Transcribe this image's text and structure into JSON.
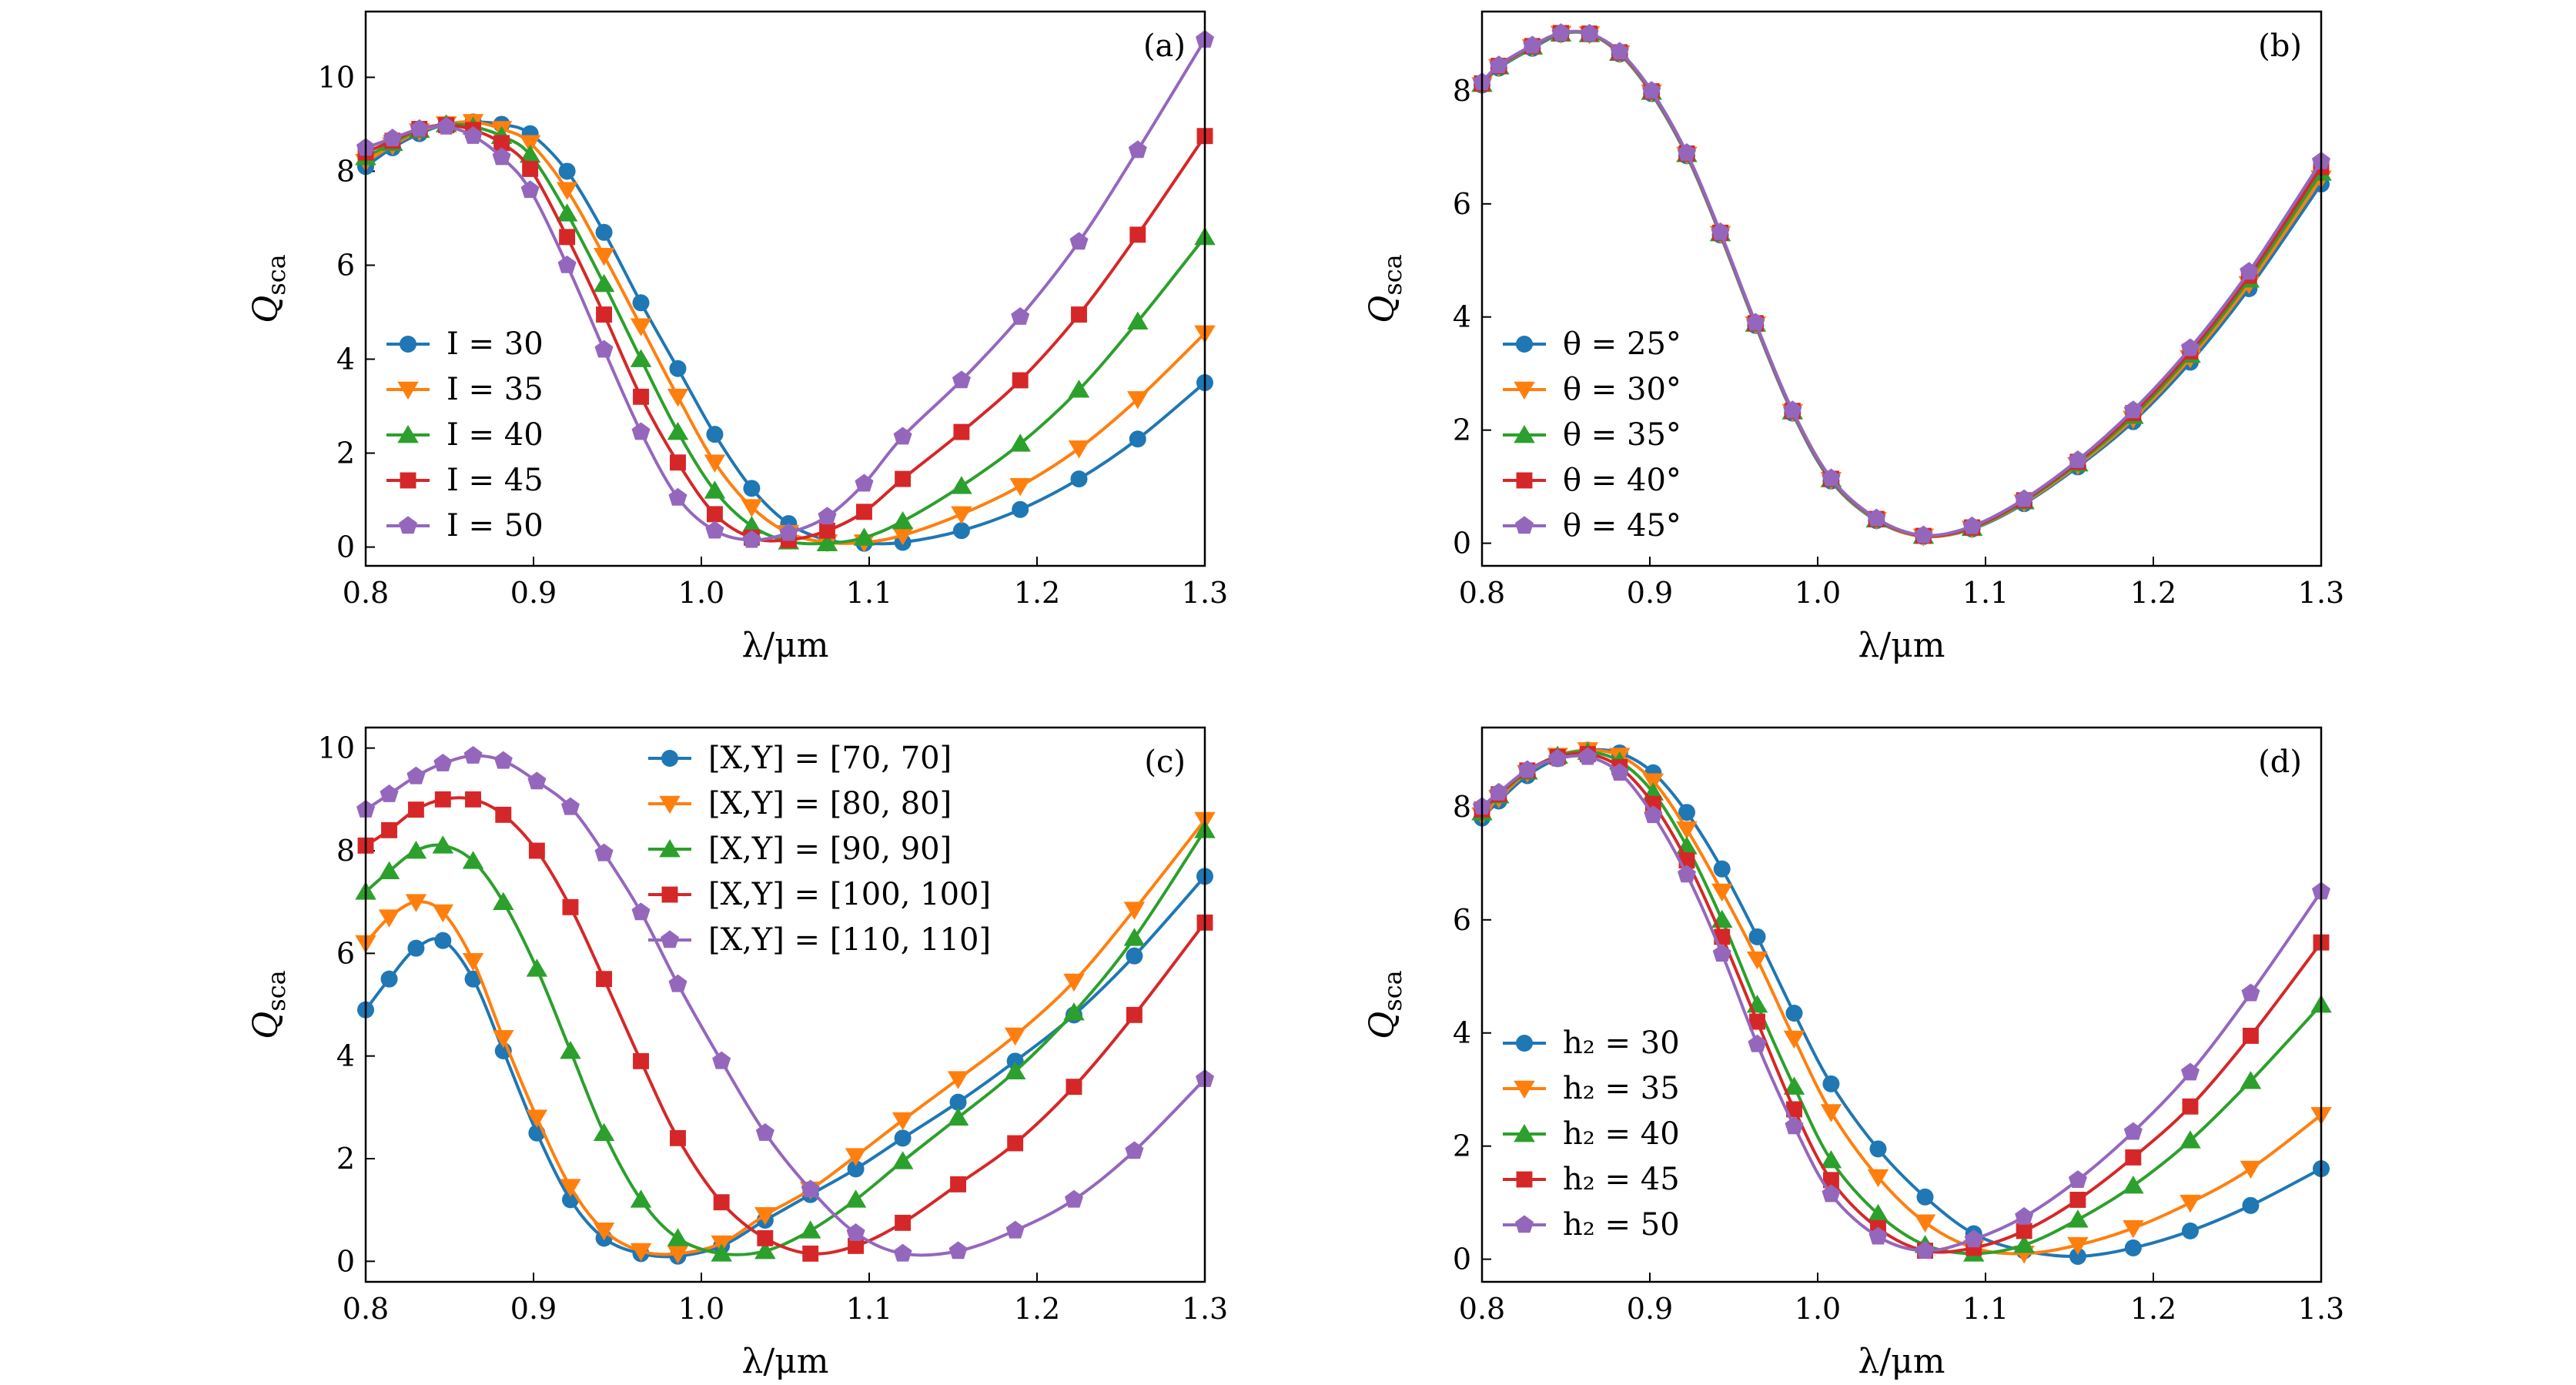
{
  "figure": {
    "panels": [
      {
        "id": "a",
        "label": "(a)",
        "xlabel": "λ/μm",
        "ylabel_main": "Q",
        "ylabel_sub": "sca",
        "legend_position": "lower-left"
      },
      {
        "id": "b",
        "label": "(b)",
        "xlabel": "λ/μm",
        "ylabel_main": "Q",
        "ylabel_sub": "sca",
        "legend_position": "lower-left"
      },
      {
        "id": "c",
        "label": "(c)",
        "xlabel": "λ/μm",
        "ylabel_main": "Q",
        "ylabel_sub": "sca",
        "legend_position": "top-center"
      },
      {
        "id": "d",
        "label": "(d)",
        "xlabel": "λ/μm",
        "ylabel_main": "Q",
        "ylabel_sub": "sca",
        "legend_position": "lower-left"
      }
    ]
  },
  "colors": {
    "blue": "#1f77b4",
    "orange": "#ff7f0e",
    "green": "#2ca02c",
    "red": "#d62728",
    "purple": "#9467bd"
  },
  "chart_data": [
    {
      "panel": "a",
      "type": "line",
      "xlim": [
        0.8,
        1.3
      ],
      "ylim": [
        -0.4,
        11.4
      ],
      "xticks": [
        "0.8",
        "0.9",
        "1.0",
        "1.1",
        "1.2",
        "1.3"
      ],
      "yticks": [
        "0",
        "2",
        "4",
        "6",
        "8",
        "10"
      ],
      "x": [
        0.8,
        0.816,
        0.832,
        0.848,
        0.864,
        0.881,
        0.898,
        0.92,
        0.942,
        0.964,
        0.986,
        1.008,
        1.03,
        1.052,
        1.075,
        1.097,
        1.12,
        1.155,
        1.19,
        1.225,
        1.26,
        1.3
      ],
      "series": [
        {
          "name": "I = 30",
          "values": [
            8.1,
            8.5,
            8.8,
            9.0,
            9.05,
            9.0,
            8.8,
            8.0,
            6.7,
            5.2,
            3.8,
            2.4,
            1.25,
            0.5,
            0.15,
            0.08,
            0.1,
            0.35,
            0.8,
            1.45,
            2.3,
            3.5
          ]
        },
        {
          "name": "I = 35",
          "values": [
            8.2,
            8.55,
            8.85,
            9.0,
            9.05,
            8.9,
            8.6,
            7.6,
            6.2,
            4.7,
            3.2,
            1.8,
            0.85,
            0.3,
            0.1,
            0.1,
            0.25,
            0.7,
            1.3,
            2.1,
            3.15,
            4.55
          ]
        },
        {
          "name": "I = 40",
          "values": [
            8.3,
            8.6,
            8.88,
            9.0,
            8.95,
            8.75,
            8.35,
            7.1,
            5.6,
            4.0,
            2.45,
            1.2,
            0.45,
            0.12,
            0.08,
            0.2,
            0.55,
            1.3,
            2.2,
            3.35,
            4.8,
            6.6
          ]
        },
        {
          "name": "I = 45",
          "values": [
            8.4,
            8.65,
            8.9,
            8.98,
            8.88,
            8.6,
            8.05,
            6.6,
            4.95,
            3.2,
            1.8,
            0.7,
            0.2,
            0.15,
            0.35,
            0.75,
            1.45,
            2.45,
            3.55,
            4.95,
            6.65,
            8.75
          ]
        },
        {
          "name": "I = 50",
          "values": [
            8.5,
            8.7,
            8.9,
            8.95,
            8.75,
            8.3,
            7.6,
            6.0,
            4.2,
            2.45,
            1.05,
            0.35,
            0.15,
            0.3,
            0.65,
            1.35,
            2.35,
            3.55,
            4.9,
            6.5,
            8.45,
            10.8
          ]
        }
      ]
    },
    {
      "panel": "b",
      "type": "line",
      "xlim": [
        0.8,
        1.3
      ],
      "ylim": [
        -0.4,
        9.4
      ],
      "xticks": [
        "0.8",
        "0.9",
        "1.0",
        "1.1",
        "1.2",
        "1.3"
      ],
      "yticks": [
        "0",
        "2",
        "4",
        "6",
        "8"
      ],
      "x": [
        0.8,
        0.81,
        0.83,
        0.847,
        0.864,
        0.882,
        0.901,
        0.922,
        0.942,
        0.963,
        0.985,
        1.008,
        1.035,
        1.063,
        1.092,
        1.123,
        1.155,
        1.188,
        1.222,
        1.257,
        1.3
      ],
      "series": [
        {
          "name": "θ = 25°",
          "values": [
            8.1,
            8.4,
            8.75,
            9.0,
            9.0,
            8.65,
            7.95,
            6.85,
            5.45,
            3.85,
            2.3,
            1.1,
            0.4,
            0.12,
            0.25,
            0.7,
            1.35,
            2.15,
            3.2,
            4.5,
            6.35
          ]
        },
        {
          "name": "θ = 30°",
          "values": [
            8.1,
            8.42,
            8.77,
            9.01,
            9.0,
            8.66,
            7.97,
            6.87,
            5.47,
            3.87,
            2.32,
            1.12,
            0.41,
            0.12,
            0.26,
            0.72,
            1.38,
            2.2,
            3.27,
            4.58,
            6.45
          ]
        },
        {
          "name": "θ = 35°",
          "values": [
            8.12,
            8.43,
            8.78,
            9.01,
            9.0,
            8.67,
            7.98,
            6.88,
            5.48,
            3.88,
            2.33,
            1.13,
            0.42,
            0.13,
            0.27,
            0.74,
            1.41,
            2.25,
            3.33,
            4.66,
            6.55
          ]
        },
        {
          "name": "θ = 40°",
          "values": [
            8.13,
            8.44,
            8.79,
            9.02,
            9.01,
            8.68,
            7.99,
            6.89,
            5.49,
            3.89,
            2.34,
            1.14,
            0.43,
            0.13,
            0.28,
            0.76,
            1.44,
            2.3,
            3.39,
            4.73,
            6.65
          ]
        },
        {
          "name": "θ = 45°",
          "values": [
            8.15,
            8.45,
            8.8,
            9.02,
            9.01,
            8.69,
            8.0,
            6.9,
            5.5,
            3.9,
            2.35,
            1.15,
            0.44,
            0.14,
            0.3,
            0.78,
            1.47,
            2.35,
            3.45,
            4.8,
            6.75
          ]
        }
      ]
    },
    {
      "panel": "c",
      "type": "line",
      "xlim": [
        0.8,
        1.3
      ],
      "ylim": [
        -0.4,
        10.4
      ],
      "xticks": [
        "0.8",
        "0.9",
        "1.0",
        "1.1",
        "1.2",
        "1.3"
      ],
      "yticks": [
        "0",
        "2",
        "4",
        "6",
        "8",
        "10"
      ],
      "x": [
        0.8,
        0.814,
        0.83,
        0.846,
        0.864,
        0.882,
        0.902,
        0.922,
        0.942,
        0.964,
        0.986,
        1.012,
        1.038,
        1.065,
        1.092,
        1.12,
        1.153,
        1.187,
        1.222,
        1.258,
        1.3
      ],
      "series": [
        {
          "name": "[X,Y] = [70, 70]",
          "values": [
            4.9,
            5.5,
            6.1,
            6.25,
            5.5,
            4.1,
            2.5,
            1.2,
            0.45,
            0.15,
            0.1,
            0.3,
            0.8,
            1.3,
            1.8,
            2.4,
            3.1,
            3.9,
            4.8,
            5.95,
            7.5
          ]
        },
        {
          "name": "[X,Y] = [80, 80]",
          "values": [
            6.2,
            6.7,
            7.0,
            6.8,
            5.85,
            4.35,
            2.8,
            1.45,
            0.6,
            0.2,
            0.15,
            0.35,
            0.9,
            1.4,
            2.05,
            2.75,
            3.55,
            4.4,
            5.45,
            6.85,
            8.6
          ]
        },
        {
          "name": "[X,Y] = [90, 90]",
          "values": [
            7.2,
            7.6,
            8.0,
            8.1,
            7.8,
            7.0,
            5.7,
            4.1,
            2.5,
            1.2,
            0.45,
            0.15,
            0.2,
            0.6,
            1.2,
            1.95,
            2.8,
            3.7,
            4.85,
            6.3,
            8.4
          ]
        },
        {
          "name": "[X,Y] = [100, 100]",
          "values": [
            8.1,
            8.4,
            8.8,
            9.0,
            9.0,
            8.7,
            8.0,
            6.9,
            5.5,
            3.9,
            2.4,
            1.15,
            0.45,
            0.15,
            0.3,
            0.75,
            1.5,
            2.3,
            3.4,
            4.8,
            6.6
          ]
        },
        {
          "name": "[X,Y] = [110, 110]",
          "values": [
            8.8,
            9.1,
            9.45,
            9.7,
            9.85,
            9.75,
            9.35,
            8.85,
            7.95,
            6.8,
            5.4,
            3.9,
            2.5,
            1.4,
            0.55,
            0.15,
            0.2,
            0.6,
            1.2,
            2.15,
            3.55
          ]
        }
      ]
    },
    {
      "panel": "d",
      "type": "line",
      "xlim": [
        0.8,
        1.3
      ],
      "ylim": [
        -0.4,
        9.4
      ],
      "xticks": [
        "0.8",
        "0.9",
        "1.0",
        "1.1",
        "1.2",
        "1.3"
      ],
      "yticks": [
        "0",
        "2",
        "4",
        "6",
        "8"
      ],
      "x": [
        0.8,
        0.81,
        0.827,
        0.845,
        0.863,
        0.882,
        0.902,
        0.922,
        0.943,
        0.964,
        0.986,
        1.008,
        1.036,
        1.064,
        1.093,
        1.123,
        1.155,
        1.188,
        1.222,
        1.258,
        1.3
      ],
      "series": [
        {
          "name": "h₂ = 30",
          "values": [
            7.8,
            8.1,
            8.55,
            8.85,
            9.0,
            8.95,
            8.6,
            7.9,
            6.9,
            5.7,
            4.35,
            3.1,
            1.95,
            1.1,
            0.45,
            0.15,
            0.05,
            0.2,
            0.5,
            0.95,
            1.6
          ]
        },
        {
          "name": "h₂ = 35",
          "values": [
            7.85,
            8.15,
            8.6,
            8.9,
            9.0,
            8.9,
            8.45,
            7.6,
            6.5,
            5.3,
            3.9,
            2.6,
            1.45,
            0.65,
            0.2,
            0.1,
            0.25,
            0.55,
            1.0,
            1.6,
            2.55
          ]
        },
        {
          "name": "h₂ = 40",
          "values": [
            7.9,
            8.2,
            8.62,
            8.9,
            8.97,
            8.8,
            8.25,
            7.3,
            6.0,
            4.5,
            3.05,
            1.75,
            0.8,
            0.25,
            0.1,
            0.25,
            0.7,
            1.3,
            2.1,
            3.15,
            4.5
          ]
        },
        {
          "name": "h₂ = 45",
          "values": [
            7.95,
            8.22,
            8.64,
            8.88,
            8.93,
            8.7,
            8.05,
            7.05,
            5.7,
            4.2,
            2.65,
            1.4,
            0.55,
            0.15,
            0.2,
            0.5,
            1.05,
            1.8,
            2.7,
            3.95,
            5.6
          ]
        },
        {
          "name": "h₂ = 50",
          "values": [
            8.0,
            8.25,
            8.65,
            8.85,
            8.88,
            8.6,
            7.85,
            6.8,
            5.4,
            3.8,
            2.35,
            1.15,
            0.4,
            0.15,
            0.35,
            0.75,
            1.4,
            2.25,
            3.3,
            4.7,
            6.5
          ]
        }
      ]
    }
  ]
}
